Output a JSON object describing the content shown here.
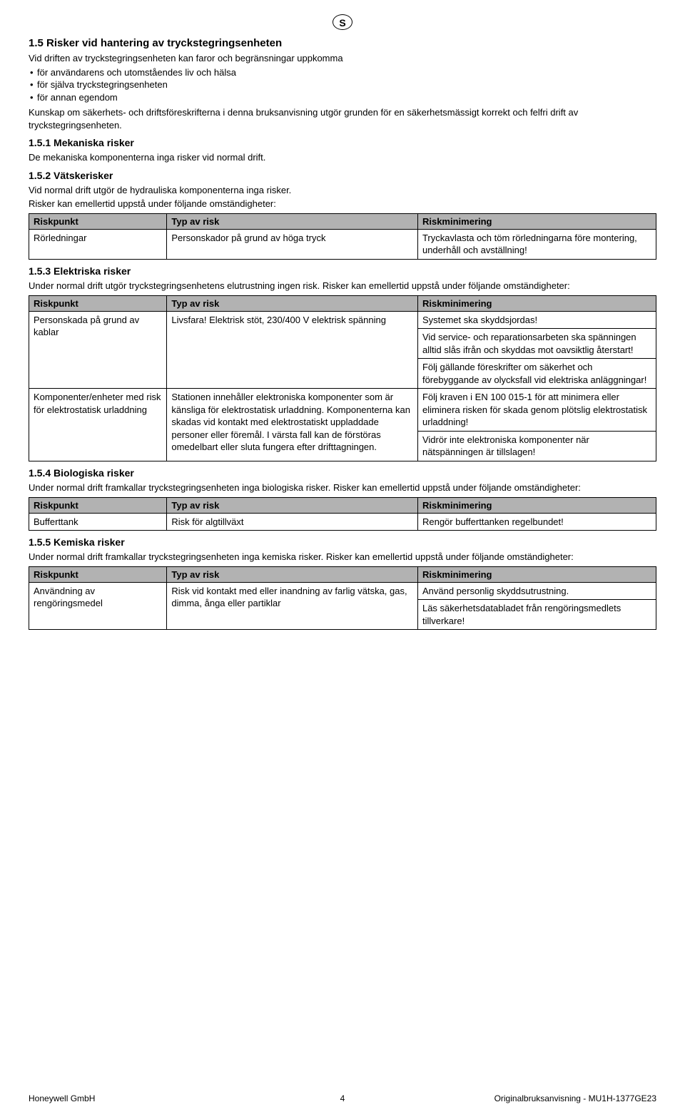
{
  "circle_letter": "S",
  "heading_1_5": "1.5  Risker vid hantering av tryckstegringsenheten",
  "intro_1_5": "Vid driften av tryckstegringsenheten kan faror och begränsningar uppkomma",
  "bullets_1_5": [
    "för användarens och utomståendes liv och hälsa",
    "för själva tryckstegringsenheten",
    "för annan egendom"
  ],
  "para_1_5_after": "Kunskap om säkerhets- och driftsföreskrifterna i denna bruksanvisning utgör grunden för en säkerhetsmässigt korrekt och felfri drift av tryckstegringsenheten.",
  "heading_1_5_1": "1.5.1  Mekaniska risker",
  "para_1_5_1": "De mekaniska komponenterna inga risker vid normal drift.",
  "heading_1_5_2": "1.5.2  Vätskerisker",
  "para_1_5_2_a": "Vid normal drift utgör de hydrauliska komponenterna inga risker.",
  "para_1_5_2_b": "Risker kan emellertid uppstå under följande omständigheter:",
  "table_headers": {
    "col1": "Riskpunkt",
    "col2": "Typ av risk",
    "col3": "Riskminimering"
  },
  "table_1_5_2": {
    "row1_c1": "Rörledningar",
    "row1_c2": "Personskador på grund av höga tryck",
    "row1_c3": "Tryckavlasta och töm rörledningarna före montering, underhåll och avställning!"
  },
  "heading_1_5_3": "1.5.3  Elektriska risker",
  "para_1_5_3": "Under normal drift utgör tryckstegringsenhetens elutrustning ingen risk. Risker kan emellertid uppstå under följande omständigheter:",
  "table_1_5_3": {
    "row1": {
      "c1": "Personskada på grund av kablar",
      "c2": "Livsfara! Elektrisk stöt, 230/400 V elektrisk spänning",
      "c3a": "Systemet ska skyddsjordas!",
      "c3b": "Vid service- och reparationsarbeten ska spänningen alltid slås ifrån och skyddas mot oavsiktlig återstart!",
      "c3c": "Följ gällande föreskrifter om säkerhet och förebyggande av olycksfall vid elektriska anläggningar!"
    },
    "row2": {
      "c1": "Komponenter/enheter med risk för elektrostatisk urladdning",
      "c2": "Stationen innehåller elektroniska komponenter som är känsliga för elektrostatisk urladdning. Komponenterna kan skadas vid kontakt med elektrostatiskt uppladdade personer eller föremål. I värsta fall kan de förstöras omedelbart eller sluta fungera efter drifttagningen.",
      "c3a": "Följ kraven i EN 100 015-1 för att minimera eller eliminera risken för skada genom plötslig elektrostatisk urladdning!",
      "c3b": "Vidrör inte elektroniska komponenter när nätspänningen är tillslagen!"
    }
  },
  "heading_1_5_4": "1.5.4  Biologiska risker",
  "para_1_5_4": "Under normal drift framkallar tryckstegringsenheten inga biologiska risker. Risker kan emellertid uppstå under följande omständigheter:",
  "table_1_5_4": {
    "row1_c1": "Bufferttank",
    "row1_c2": "Risk för algtillväxt",
    "row1_c3": "Rengör bufferttanken regelbundet!"
  },
  "heading_1_5_5": "1.5.5  Kemiska risker",
  "para_1_5_5": "Under normal drift framkallar tryckstegringsenheten inga kemiska risker. Risker kan emellertid uppstå under följande omständigheter:",
  "table_1_5_5": {
    "row1_c1": "Användning av rengöringsmedel",
    "row1_c2": "Risk vid kontakt med eller inandning av farlig vätska, gas, dimma, ånga eller partiklar",
    "row1_c3a": "Använd personlig skyddsutrustning.",
    "row1_c3b": "Läs säkerhetsdatabladet från rengöringsmedlets tillverkare!"
  },
  "footer_left": "Honeywell GmbH",
  "footer_center": "4",
  "footer_right": "Originalbruksanvisning  -  MU1H-1377GE23"
}
